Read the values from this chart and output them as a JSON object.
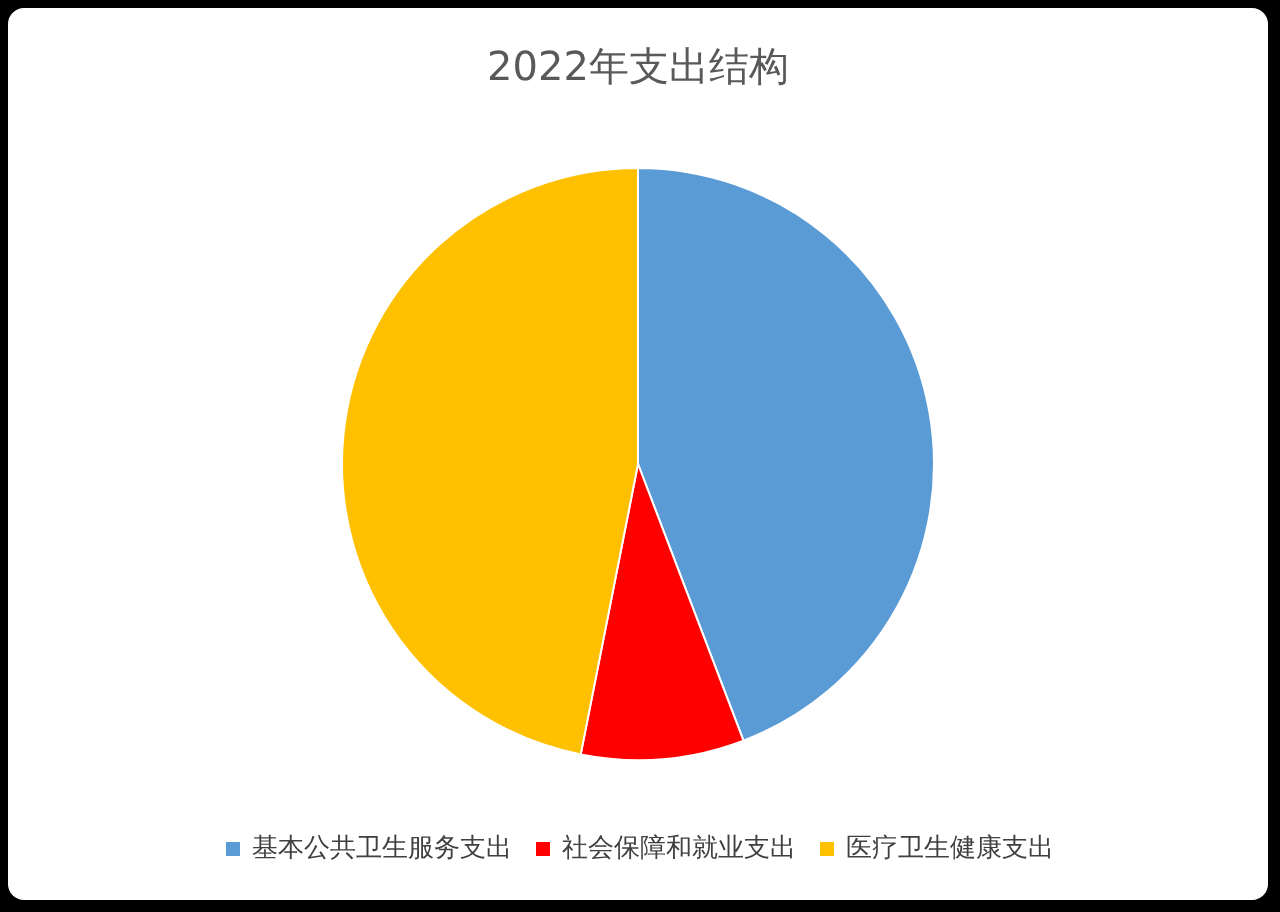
{
  "chart_data": {
    "type": "pie",
    "title": "2022年支出结构",
    "categories": [
      "基本公共卫生服务支出",
      "社会保障和就业支出",
      "医疗卫生健康支出"
    ],
    "values": [
      44.2,
      8.9,
      46.9
    ],
    "colors": [
      "#5b9bd5",
      "#ff0000",
      "#ffc000"
    ],
    "legend": "bottom"
  }
}
